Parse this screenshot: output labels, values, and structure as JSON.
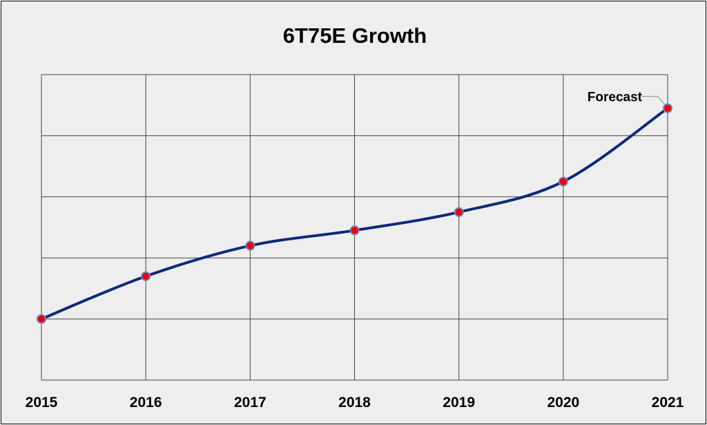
{
  "chart_data": {
    "type": "line",
    "title": "6T75E Growth",
    "xlabel": "",
    "ylabel": "",
    "x": [
      "2015",
      "2016",
      "2017",
      "2018",
      "2019",
      "2020",
      "2021"
    ],
    "series": [
      {
        "values": [
          1.0,
          1.7,
          2.2,
          2.45,
          2.75,
          3.25,
          4.45
        ]
      }
    ],
    "ylim": [
      0,
      5
    ],
    "y_tick_labels": false,
    "grid": true,
    "smooth": true,
    "annotations": [
      {
        "text": "Forecast",
        "x": "2021"
      }
    ],
    "colors": {
      "line": "#0d2a7a",
      "marker_fill": "#ee0000",
      "marker_stroke": "#6f7fc4",
      "grid": "#444444",
      "background": "#eeeeee"
    }
  }
}
